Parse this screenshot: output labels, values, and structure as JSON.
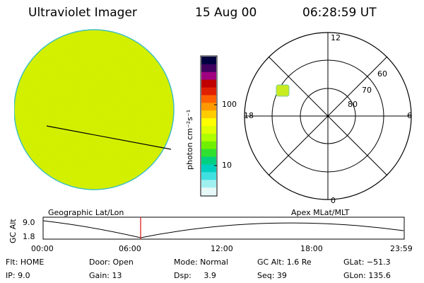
{
  "header": {
    "instrument": "Ultraviolet Imager",
    "date": "15 Aug 00",
    "time": "06:28:59 UT"
  },
  "colorbar": {
    "unit_label": "photon cm⁻²s⁻¹",
    "ticks": [
      "100",
      "10"
    ],
    "colors": [
      "#000040",
      "#400060",
      "#a00080",
      "#c00000",
      "#e02000",
      "#ff6000",
      "#ff9900",
      "#ffcc00",
      "#ffff00",
      "#e0ff00",
      "#b0ff00",
      "#70f000",
      "#30e030",
      "#00d080",
      "#00d0c0",
      "#40e0e0",
      "#a0f0f0",
      "#e6f8f8"
    ]
  },
  "earth_image": {
    "fill_color": "#d8f000",
    "rim_color": "#40c0c0"
  },
  "polar_plot": {
    "labels_mlt": [
      "12",
      "6",
      "18",
      "0"
    ],
    "labels_lat": [
      "60",
      "70",
      "80"
    ],
    "spot_color": "#c8ec20"
  },
  "timeline": {
    "left_title": "Geographic Lat/Lon",
    "right_title": "Apex MLat/MLT",
    "axis_label": "GC Alt",
    "y_ticks": [
      "9.0",
      "1.8"
    ],
    "x_ticks": [
      "00:00",
      "06:00",
      "12:00",
      "18:00",
      "23:59"
    ],
    "marker_color": "#e02020"
  },
  "info": {
    "flt": "Flt: HOME",
    "ip": "IP:  9.0",
    "door": "Door: Open",
    "gain": "Gain: 13",
    "mode": "Mode: Normal",
    "dsp": "Dsp:     3.9",
    "gcalt": "GC Alt: 1.6 Re",
    "seq": "Seq: 39",
    "glat": "GLat: −51.3",
    "glon": "GLon: 135.6"
  }
}
